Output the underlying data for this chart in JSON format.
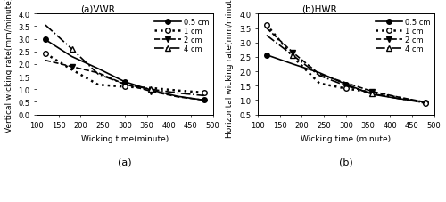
{
  "vwr": {
    "title": "(a)VWR",
    "xlabel": "Wicking time(minute)",
    "ylabel": "Vertical wicking rate(mm/minute)",
    "ylim": [
      0.0,
      4.0
    ],
    "xlim": [
      100,
      500
    ],
    "yticks": [
      0.0,
      0.5,
      1.0,
      1.5,
      2.0,
      2.5,
      3.0,
      3.5,
      4.0
    ],
    "xticks": [
      100,
      150,
      200,
      250,
      300,
      350,
      400,
      450,
      500
    ],
    "series": {
      "0.5cm": {
        "x": [
          120,
          180,
          240,
          300,
          360,
          420,
          480
        ],
        "y": [
          2.97,
          2.3,
          1.82,
          1.3,
          0.97,
          0.72,
          0.57
        ],
        "linestyle": "-",
        "marker": "o",
        "markerfacecolor": "black",
        "markeredgecolor": "black",
        "color": "black",
        "markersize": 4,
        "linewidth": 1.2,
        "label": "0.5 cm",
        "markevery": [
          0,
          3,
          6
        ]
      },
      "1cm": {
        "x": [
          120,
          180,
          240,
          300,
          360,
          420,
          480
        ],
        "y": [
          2.42,
          1.78,
          1.18,
          1.1,
          1.05,
          0.95,
          0.87
        ],
        "linestyle": ":",
        "marker": "o",
        "markerfacecolor": "white",
        "markeredgecolor": "black",
        "color": "black",
        "markersize": 4,
        "linewidth": 1.8,
        "label": "1 cm",
        "markevery": [
          0,
          3,
          6
        ]
      },
      "2cm": {
        "x": [
          120,
          180,
          240,
          300,
          360,
          420,
          480
        ],
        "y": [
          2.15,
          1.9,
          1.65,
          1.2,
          0.92,
          0.7,
          0.57
        ],
        "linestyle": "--",
        "marker": "v",
        "markerfacecolor": "black",
        "markeredgecolor": "black",
        "color": "black",
        "markersize": 4,
        "linewidth": 1.2,
        "label": "2 cm",
        "markevery": [
          1,
          4
        ]
      },
      "4cm": {
        "x": [
          120,
          180,
          240,
          300,
          360,
          420,
          480
        ],
        "y": [
          3.55,
          2.6,
          1.6,
          1.2,
          1.0,
          0.85,
          0.75
        ],
        "linestyle": "-.",
        "marker": "^",
        "markerfacecolor": "white",
        "markeredgecolor": "black",
        "color": "black",
        "markersize": 4,
        "linewidth": 1.2,
        "label": "4 cm",
        "markevery": [
          1,
          4
        ]
      }
    }
  },
  "hwr": {
    "title": "(b)HWR",
    "xlabel": "Wicking time (minute)",
    "ylabel": "Horizontal wicking rate(mm/minute)",
    "ylim": [
      0.5,
      4.0
    ],
    "xlim": [
      100,
      500
    ],
    "yticks": [
      0.5,
      1.0,
      1.5,
      2.0,
      2.5,
      3.0,
      3.5,
      4.0
    ],
    "xticks": [
      100,
      150,
      200,
      250,
      300,
      350,
      400,
      450,
      500
    ],
    "series": {
      "0.5cm": {
        "x": [
          120,
          180,
          240,
          300,
          360,
          420,
          480
        ],
        "y": [
          2.57,
          2.25,
          1.95,
          1.55,
          1.2,
          1.05,
          0.93
        ],
        "linestyle": "-",
        "marker": "o",
        "markerfacecolor": "black",
        "markeredgecolor": "black",
        "color": "black",
        "markersize": 4,
        "linewidth": 1.2,
        "label": "0.5 cm",
        "markevery": [
          0,
          3,
          6
        ]
      },
      "1cm": {
        "x": [
          120,
          180,
          240,
          300,
          360,
          420,
          480
        ],
        "y": [
          3.62,
          2.5,
          1.58,
          1.4,
          1.27,
          1.08,
          0.9
        ],
        "linestyle": ":",
        "marker": "o",
        "markerfacecolor": "white",
        "markeredgecolor": "black",
        "color": "black",
        "markersize": 4,
        "linewidth": 1.8,
        "label": "1 cm",
        "markevery": [
          0,
          3,
          6
        ]
      },
      "2cm": {
        "x": [
          120,
          180,
          240,
          300,
          360,
          420,
          480
        ],
        "y": [
          3.5,
          2.65,
          1.9,
          1.6,
          1.3,
          1.1,
          0.93
        ],
        "linestyle": "--",
        "marker": "v",
        "markerfacecolor": "black",
        "markeredgecolor": "black",
        "color": "black",
        "markersize": 4,
        "linewidth": 1.2,
        "label": "2 cm",
        "markevery": [
          1,
          4
        ]
      },
      "4cm": {
        "x": [
          120,
          180,
          240,
          300,
          360,
          420,
          480
        ],
        "y": [
          3.25,
          2.55,
          1.85,
          1.5,
          1.22,
          1.05,
          0.9
        ],
        "linestyle": "-.",
        "marker": "^",
        "markerfacecolor": "white",
        "markeredgecolor": "black",
        "color": "black",
        "markersize": 4,
        "linewidth": 1.2,
        "label": "4 cm",
        "markevery": [
          1,
          4
        ]
      }
    }
  },
  "subplot_labels": [
    "(a)",
    "(b)"
  ],
  "background_color": "#ffffff",
  "legend_fontsize": 6,
  "tick_fontsize": 6,
  "axis_label_fontsize": 6.5,
  "title_fontsize": 7.5
}
